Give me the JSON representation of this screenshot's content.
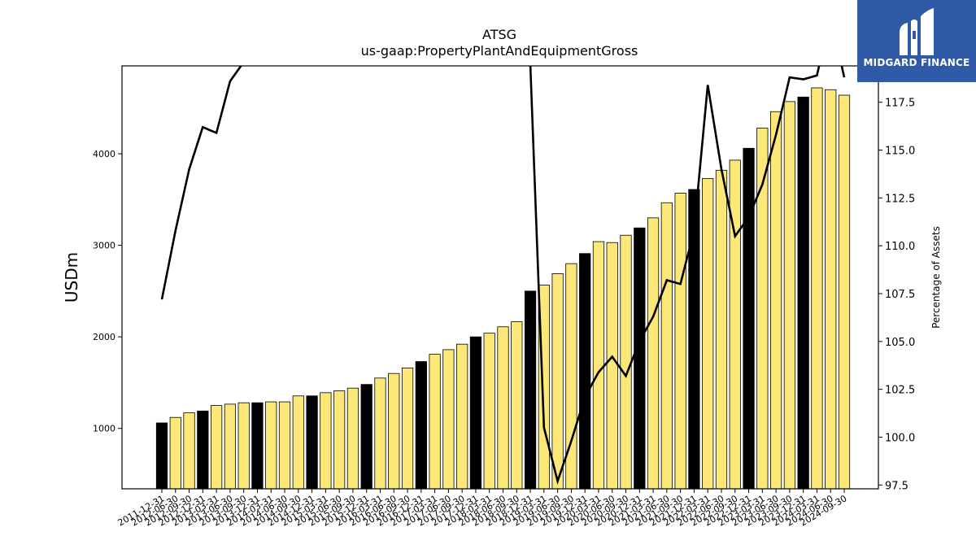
{
  "chart_data": {
    "type": "bar",
    "title": "ATSG",
    "subtitle": "us-gaap:PropertyPlantAndEquipmentGross",
    "ylabel": "USDm",
    "y2label": "Percentage of Assets",
    "ylim": [
      340,
      4960
    ],
    "y2lim": [
      97.3,
      119.4
    ],
    "yticks": [
      1000,
      2000,
      3000,
      4000
    ],
    "y2ticks": [
      97.5,
      100.0,
      102.5,
      105.0,
      107.5,
      110.0,
      112.5,
      115.0,
      117.5
    ],
    "categories": [
      "2011-12-31",
      "2012-06-30",
      "2012-09-30",
      "2012-12-31",
      "2013-03-31",
      "2013-06-30",
      "2013-09-30",
      "2013-12-31",
      "2014-03-31",
      "2014-06-30",
      "2014-09-30",
      "2014-12-31",
      "2015-03-31",
      "2015-06-30",
      "2015-09-30",
      "2015-12-31",
      "2016-03-31",
      "2016-06-30",
      "2016-09-30",
      "2016-12-31",
      "2017-03-31",
      "2017-06-30",
      "2017-09-30",
      "2017-12-31",
      "2018-03-31",
      "2018-06-30",
      "2018-09-30",
      "2018-12-31",
      "2019-03-31",
      "2019-06-30",
      "2019-09-30",
      "2019-12-31",
      "2020-03-31",
      "2020-06-30",
      "2020-09-30",
      "2020-12-31",
      "2021-03-31",
      "2021-06-30",
      "2021-09-30",
      "2021-12-31",
      "2022-03-31",
      "2022-06-30",
      "2022-09-30",
      "2022-12-31",
      "2023-03-31",
      "2023-06-30",
      "2023-09-30",
      "2023-12-31",
      "2024-03-31",
      "2024-06-30",
      "2024-09-30"
    ],
    "series": [
      {
        "type": "bar",
        "values": [
          1060,
          1120,
          1170,
          1190,
          1250,
          1265,
          1280,
          1280,
          1290,
          1290,
          1355,
          1355,
          1390,
          1410,
          1440,
          1480,
          1550,
          1600,
          1660,
          1730,
          1810,
          1860,
          1920,
          2000,
          2040,
          2110,
          2165,
          2500,
          2565,
          2690,
          2800,
          2910,
          3040,
          3030,
          3110,
          3190,
          3300,
          3465,
          3570,
          3610,
          3730,
          3820,
          3930,
          4060,
          4280,
          4460,
          4570,
          4620,
          4720,
          4700,
          4640
        ],
        "colors": [
          "#000000",
          "#fce878",
          "#fce878",
          "#000000",
          "#fce878",
          "#fce878",
          "#fce878",
          "#000000",
          "#fce878",
          "#fce878",
          "#fce878",
          "#000000",
          "#fce878",
          "#fce878",
          "#fce878",
          "#000000",
          "#fce878",
          "#fce878",
          "#fce878",
          "#000000",
          "#fce878",
          "#fce878",
          "#fce878",
          "#000000",
          "#fce878",
          "#fce878",
          "#fce878",
          "#000000",
          "#fce878",
          "#fce878",
          "#fce878",
          "#000000",
          "#fce878",
          "#fce878",
          "#fce878",
          "#000000",
          "#fce878",
          "#fce878",
          "#fce878",
          "#000000",
          "#fce878",
          "#fce878",
          "#fce878",
          "#000000",
          "#fce878",
          "#fce878",
          "#fce878",
          "#000000",
          "#fce878",
          "#fce878",
          "#fce878"
        ]
      },
      {
        "type": "line",
        "axis": "right",
        "color": "#000000",
        "values": [
          107.2,
          110.8,
          114.0,
          116.2,
          115.9,
          118.6,
          119.6,
          null,
          null,
          null,
          null,
          null,
          null,
          null,
          null,
          null,
          null,
          null,
          null,
          null,
          null,
          null,
          null,
          null,
          null,
          null,
          null,
          119.4,
          100.5,
          97.7,
          99.8,
          102.1,
          103.4,
          104.2,
          103.2,
          105.0,
          106.3,
          108.2,
          108.0,
          110.8,
          118.4,
          114.0,
          110.5,
          111.5,
          113.2,
          115.8,
          118.8,
          118.7,
          118.9,
          122.0,
          118.8
        ]
      }
    ],
    "accent": "#fce878",
    "highlight": "#000000"
  },
  "logo": {
    "text": "MIDGARD FINANCE",
    "background": "#2f5aa8",
    "icon": "midgard-logo-mark"
  }
}
